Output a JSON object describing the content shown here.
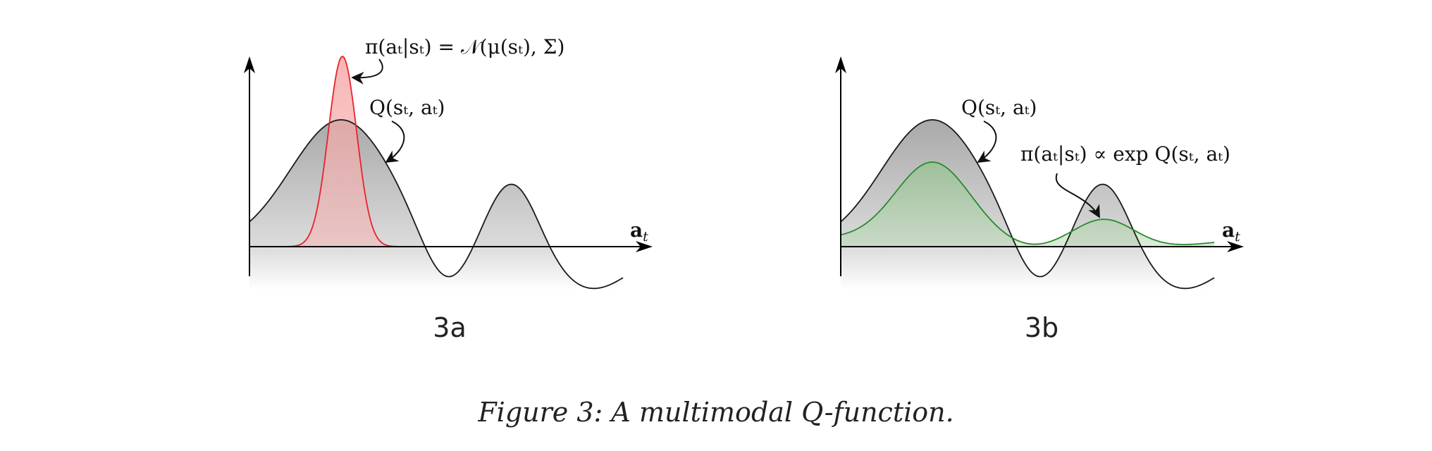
{
  "figure": {
    "caption": "Figure 3: A multimodal Q-function.",
    "colors": {
      "q_stroke": "#1a1a1a",
      "q_fill": "#b8b8b8",
      "policy_a": "#e8232b",
      "policy_a_fill": "#f4a9a9",
      "policy_b": "#2a8a2a",
      "policy_b_fill": "#a9cfa3",
      "axis": "#000000"
    }
  },
  "panel_a": {
    "label": "3a",
    "x_axis_label": "a",
    "x_axis_sub": "t",
    "policy_annotation": "π(aₜ|sₜ) = 𝒩(μ(sₜ), Σ)",
    "q_annotation": "Q(sₜ, aₜ)"
  },
  "panel_b": {
    "label": "3b",
    "x_axis_label": "a",
    "x_axis_sub": "t",
    "q_annotation": "Q(sₜ, aₜ)",
    "policy_annotation": "π(aₜ|sₜ) ∝ exp Q(sₜ, aₜ)"
  }
}
